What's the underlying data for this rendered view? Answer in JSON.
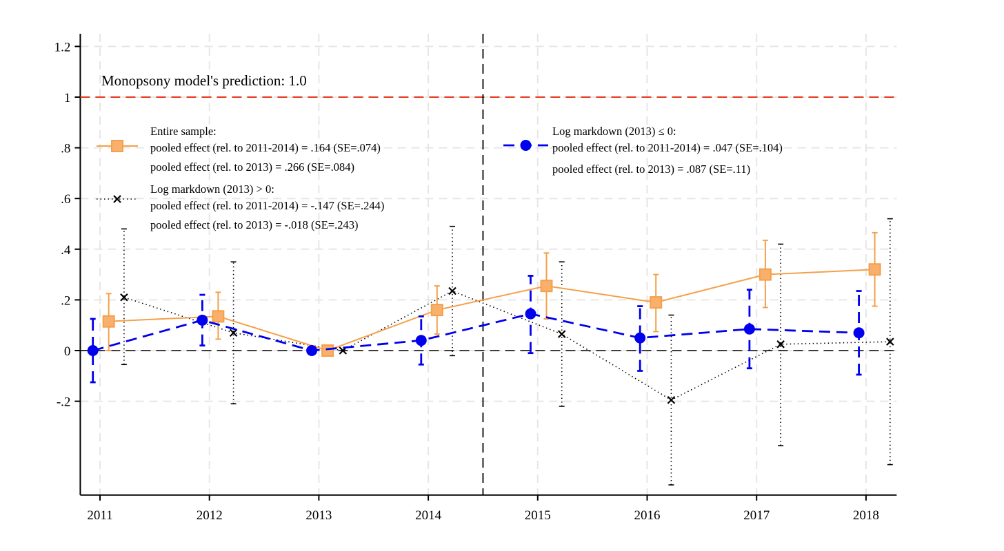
{
  "chart_data": {
    "type": "scatter",
    "title": "",
    "xlabel": "",
    "ylabel": "",
    "x": [
      2011,
      2012,
      2013,
      2014,
      2015,
      2016,
      2017,
      2018
    ],
    "xticks": [
      "2011",
      "2012",
      "2013",
      "2014",
      "2015",
      "2016",
      "2017",
      "2018"
    ],
    "yticks": [
      {
        "value": 1.2,
        "label": "1.2"
      },
      {
        "value": 1.0,
        "label": "1"
      },
      {
        "value": 0.8,
        "label": ".8"
      },
      {
        "value": 0.6,
        "label": ".6"
      },
      {
        "value": 0.4,
        "label": ".4"
      },
      {
        "value": 0.2,
        "label": ".2"
      },
      {
        "value": 0.0,
        "label": "0"
      },
      {
        "value": -0.2,
        "label": "-.2"
      }
    ],
    "xlim": [
      2010.82,
      2018.28
    ],
    "ylim": [
      -0.57,
      1.25
    ],
    "grid": true,
    "reference_lines": {
      "horizontal_red": 1.0,
      "horizontal_zero": 0.0,
      "vertical_treatment": 2014.5
    },
    "annotation": "Monopsony model's prediction: 1.0",
    "series": [
      {
        "name": "Entire sample",
        "color": "#f5a04a",
        "marker": "square",
        "line": "solid",
        "x_offset": 0.08,
        "values": [
          0.115,
          0.135,
          0.0,
          0.16,
          0.255,
          0.19,
          0.3,
          0.32
        ],
        "ci_low": [
          0.0,
          0.045,
          null,
          0.065,
          0.125,
          0.075,
          0.17,
          0.175
        ],
        "ci_high": [
          0.225,
          0.23,
          null,
          0.255,
          0.385,
          0.3,
          0.435,
          0.465
        ],
        "legend": [
          "Entire sample:",
          "pooled effect (rel. to 2011-2014) = .164 (SE=.074)",
          "pooled effect (rel. to 2013) = .266 (SE=.084)"
        ]
      },
      {
        "name": "Log markdown (2013) > 0",
        "color": "#000000",
        "marker": "x",
        "line": "dotted",
        "x_offset": 0.22,
        "values": [
          0.21,
          0.07,
          0.0,
          0.235,
          0.065,
          -0.195,
          0.025,
          0.035
        ],
        "ci_low": [
          -0.055,
          -0.21,
          null,
          -0.02,
          -0.22,
          -0.53,
          -0.375,
          -0.45
        ],
        "ci_high": [
          0.48,
          0.35,
          null,
          0.49,
          0.35,
          0.14,
          0.42,
          0.52
        ],
        "legend": [
          "Log markdown (2013) > 0:",
          "pooled effect (rel. to 2011-2014) = -.147 (SE=.244)",
          "pooled effect (rel. to 2013) = -.018 (SE=.243)"
        ]
      },
      {
        "name": "Log markdown (2013) ≤ 0",
        "color": "#0000ee",
        "marker": "circle",
        "line": "dashed",
        "x_offset": -0.065,
        "values": [
          0.0,
          0.12,
          0.0,
          0.04,
          0.145,
          0.05,
          0.085,
          0.07
        ],
        "ci_low": [
          -0.125,
          0.02,
          null,
          -0.055,
          -0.01,
          -0.08,
          -0.07,
          -0.095
        ],
        "ci_high": [
          0.125,
          0.22,
          null,
          0.135,
          0.295,
          0.175,
          0.24,
          0.235
        ],
        "legend": [
          "Log markdown (2013) ≤ 0:",
          "pooled effect (rel. to 2011-2014) = .047 (SE=.104)",
          "pooled effect (rel. to 2013) = .087 (SE=.11)"
        ]
      }
    ]
  }
}
